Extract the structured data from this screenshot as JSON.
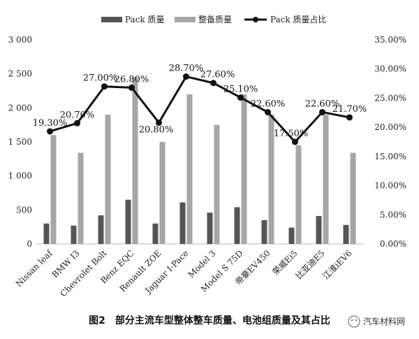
{
  "chart_data": {
    "type": "bar",
    "categories": [
      "Nissan leaf",
      "BMW I3",
      "Chevrolet Bolt",
      "Benz EQC",
      "Renault ZOE",
      "Jaguar I-Pace",
      "Model 3",
      "Model S 75D",
      "帝豪EV450",
      "荣威Ei5",
      "比亚迪E5",
      "江淮iEV6"
    ],
    "series": [
      {
        "name": "Pack 质量",
        "axis": "left",
        "values": [
          300,
          270,
          420,
          650,
          300,
          610,
          460,
          540,
          350,
          240,
          410,
          280
        ],
        "color": "#555555"
      },
      {
        "name": "整备质量",
        "axis": "left",
        "values": [
          1600,
          1340,
          1900,
          2450,
          1500,
          2200,
          1750,
          2200,
          1900,
          1450,
          1900,
          1340
        ],
        "color": "#a6a6a6"
      },
      {
        "name": "Pack 质量占比",
        "axis": "right",
        "type": "line",
        "values": [
          19.3,
          20.7,
          27.0,
          26.8,
          20.8,
          28.7,
          27.6,
          25.1,
          22.6,
          17.5,
          22.6,
          21.7
        ],
        "color": "#111111"
      }
    ],
    "point_labels": [
      "19.30%",
      "20.70%",
      "27.00%",
      "26.80%",
      "20.80%",
      "28.70%",
      "27.60%",
      "25.10%",
      "22.60%",
      "17.50%",
      "22.60%",
      "21.70%"
    ],
    "left_axis": {
      "ylim": [
        0,
        3000
      ],
      "ticks": [
        0,
        500,
        1000,
        1500,
        2000,
        2500,
        3000
      ],
      "tick_labels": [
        "0",
        "500",
        "1 000",
        "1 500",
        "2 000",
        "2 500",
        "3 000"
      ]
    },
    "right_axis": {
      "ylim": [
        0,
        35
      ],
      "ticks": [
        0,
        5,
        10,
        15,
        20,
        25,
        30,
        35
      ],
      "tick_labels": [
        "0.00%",
        "5.00%",
        "10.00%",
        "15.00%",
        "20.00%",
        "25.00%",
        "30.00%",
        "35.00%"
      ]
    },
    "legend_position": "top",
    "grid": false
  },
  "caption": "图2　部分主流车型整体整车质量、电池组质量及其占比",
  "watermark": "汽车材料网"
}
